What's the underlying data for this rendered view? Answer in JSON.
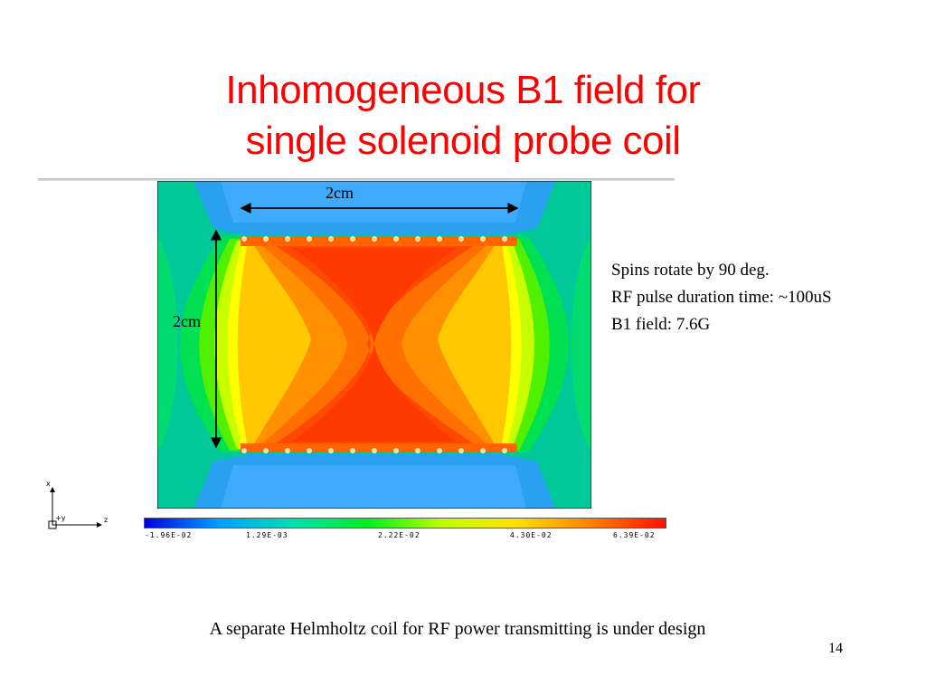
{
  "slide": {
    "title_line1": "Inhomogeneous B1 field for",
    "title_line2": "single solenoid probe coil",
    "page_number": "14",
    "footnote": "A separate Helmholtz coil for RF power transmitting is under design"
  },
  "figure": {
    "width_label": "2cm",
    "height_label": "2cm",
    "axis_labels": {
      "x": "x",
      "y": "+y",
      "z": "z"
    },
    "colorbar": {
      "colors": [
        "#0000e0",
        "#00a0ff",
        "#00e0b0",
        "#00f020",
        "#c0ff00",
        "#ffe000",
        "#ff8000",
        "#ff1000"
      ],
      "tick_labels": [
        "-1.96E-02",
        "1.29E-03",
        "2.22E-02",
        "4.30E-02",
        "6.39E-02"
      ]
    }
  },
  "notes": [
    "Spins rotate by 90 deg.",
    "RF pulse duration time: ~100uS",
    "B1 field: 7.6G"
  ]
}
